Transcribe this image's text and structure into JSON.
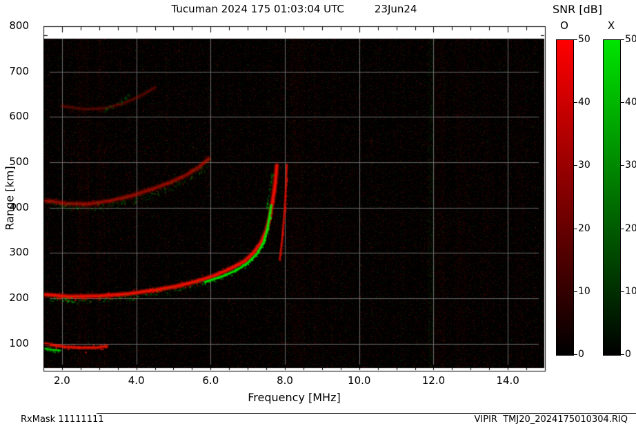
{
  "title": {
    "text": "Tucuman 2024 175 01:03:04 UTC",
    "date": "23Jun24"
  },
  "colorbar": {
    "title": "SNR [dB]",
    "o_label": "O",
    "x_label": "X",
    "ticks": [
      0,
      10,
      20,
      30,
      40,
      50
    ],
    "min": 0,
    "max": 50,
    "o_color": "#ff0000",
    "x_color": "#00e400",
    "base_color": "#000000"
  },
  "axes": {
    "xlabel": "Frequency [MHz]",
    "ylabel": "Range [km]",
    "x_tick_labels": [
      "2.0",
      "4.0",
      "6.0",
      "8.0",
      "10.0",
      "12.0",
      "14.0"
    ],
    "x_tick_values": [
      2,
      4,
      6,
      8,
      10,
      12,
      14
    ],
    "y_tick_labels": [
      "100",
      "200",
      "300",
      "400",
      "500",
      "600",
      "700",
      "800"
    ],
    "y_tick_values": [
      100,
      200,
      300,
      400,
      500,
      600,
      700,
      800
    ]
  },
  "footer": {
    "left": "RxMask 11111111",
    "right": "VIPIR  TMJ20_2024175010304.RIQ"
  },
  "chart_data": {
    "type": "heatmap",
    "title": "Tucuman 2024 175 01:03:04 UTC 23Jun24",
    "description": "VIPIR ionogram: O-mode (red) and X-mode (green) echo SNR versus frequency and virtual range",
    "xlabel": "Frequency [MHz]",
    "ylabel": "Range [km]",
    "xlim": [
      1.5,
      15.0
    ],
    "ylim": [
      40,
      800
    ],
    "snr_dB_range": [
      0,
      50
    ],
    "x_minor_tick_step": 0.5,
    "y_minor_tick_step": 20,
    "grid_color": "#6e6e6e",
    "background": "#000000",
    "traces": [
      {
        "name": "E-layer-echo-O",
        "mode": "O",
        "color": "#e81400",
        "style": "solid",
        "thickness": 6,
        "alpha": 0.9,
        "points": [
          [
            1.55,
            100
          ],
          [
            1.8,
            96
          ],
          [
            2.1,
            93
          ],
          [
            2.5,
            91
          ],
          [
            2.9,
            91
          ],
          [
            3.2,
            94
          ]
        ]
      },
      {
        "name": "E-layer-echo-X",
        "mode": "X",
        "color": "#00d800",
        "style": "solid",
        "thickness": 4,
        "alpha": 0.85,
        "points": [
          [
            1.55,
            89
          ],
          [
            1.75,
            86
          ],
          [
            1.95,
            85
          ]
        ]
      },
      {
        "name": "F-trace-1hop-O",
        "mode": "O",
        "color": "#f01000",
        "style": "solid",
        "thickness": 8,
        "alpha": 0.95,
        "points": [
          [
            1.55,
            208
          ],
          [
            2.2,
            204
          ],
          [
            3.0,
            205
          ],
          [
            3.8,
            210
          ],
          [
            4.5,
            218
          ],
          [
            5.1,
            227
          ],
          [
            5.6,
            237
          ],
          [
            6.1,
            250
          ],
          [
            6.5,
            264
          ],
          [
            6.9,
            281
          ],
          [
            7.15,
            300
          ],
          [
            7.35,
            322
          ],
          [
            7.5,
            350
          ],
          [
            7.6,
            382
          ],
          [
            7.68,
            420
          ],
          [
            7.74,
            455
          ],
          [
            7.78,
            492
          ]
        ]
      },
      {
        "name": "F-trace-1hop-O-2nd-branch",
        "mode": "O",
        "color": "#e01000",
        "style": "solid",
        "thickness": 4,
        "alpha": 0.8,
        "points": [
          [
            7.86,
            285
          ],
          [
            7.93,
            335
          ],
          [
            7.99,
            395
          ],
          [
            8.03,
            450
          ],
          [
            8.05,
            495
          ]
        ]
      },
      {
        "name": "F-trace-1hop-X",
        "mode": "X",
        "color": "#00e800",
        "style": "solid",
        "thickness": 5,
        "alpha": 0.95,
        "points": [
          [
            5.85,
            236
          ],
          [
            6.3,
            248
          ],
          [
            6.7,
            262
          ],
          [
            7.0,
            278
          ],
          [
            7.25,
            298
          ],
          [
            7.42,
            322
          ],
          [
            7.52,
            350
          ],
          [
            7.58,
            378
          ],
          [
            7.63,
            405
          ]
        ]
      },
      {
        "name": "F-trace-1hop-X-lowfreq-speckle",
        "mode": "X",
        "color": "#00c000",
        "style": "dots",
        "thickness": 5,
        "alpha": 0.4,
        "points": [
          [
            1.6,
            200
          ],
          [
            2.2,
            197
          ],
          [
            3.0,
            198
          ],
          [
            3.8,
            203
          ],
          [
            4.5,
            211
          ],
          [
            5.1,
            220
          ],
          [
            5.6,
            230
          ],
          [
            5.85,
            236
          ]
        ]
      },
      {
        "name": "F-trace-1hop-X-patch",
        "mode": "X",
        "color": "#00d800",
        "style": "dots",
        "thickness": 4,
        "alpha": 0.7,
        "points": [
          [
            2.0,
            199
          ],
          [
            2.3,
            197
          ]
        ]
      },
      {
        "name": "F-trace-1hop-X-steep-speckle",
        "mode": "X",
        "color": "#00c800",
        "style": "dots",
        "thickness": 4,
        "alpha": 0.5,
        "points": [
          [
            7.5,
            400
          ],
          [
            7.6,
            450
          ],
          [
            7.65,
            480
          ]
        ]
      },
      {
        "name": "F-trace-2hop-O",
        "mode": "O",
        "color": "#c81000",
        "style": "fuzzy",
        "thickness": 9,
        "alpha": 0.5,
        "points": [
          [
            1.55,
            416
          ],
          [
            2.1,
            409
          ],
          [
            2.7,
            408
          ],
          [
            3.3,
            415
          ],
          [
            3.9,
            427
          ],
          [
            4.4,
            440
          ],
          [
            4.9,
            455
          ],
          [
            5.35,
            472
          ],
          [
            5.7,
            490
          ],
          [
            5.95,
            508
          ]
        ]
      },
      {
        "name": "F-trace-2hop-X-speckle",
        "mode": "X",
        "color": "#00b400",
        "style": "dots",
        "thickness": 6,
        "alpha": 0.35,
        "points": [
          [
            1.55,
            408
          ],
          [
            2.2,
            401
          ],
          [
            2.9,
            401
          ],
          [
            3.5,
            409
          ],
          [
            4.1,
            421
          ],
          [
            4.6,
            434
          ],
          [
            5.0,
            448
          ],
          [
            5.4,
            465
          ],
          [
            5.75,
            483
          ],
          [
            5.95,
            500
          ]
        ]
      },
      {
        "name": "F-trace-3hop-O",
        "mode": "O",
        "color": "#a01000",
        "style": "fuzzy",
        "thickness": 7,
        "alpha": 0.3,
        "points": [
          [
            2.0,
            624
          ],
          [
            2.6,
            617
          ],
          [
            3.2,
            620
          ],
          [
            3.7,
            631
          ],
          [
            4.15,
            648
          ],
          [
            4.5,
            665
          ]
        ]
      },
      {
        "name": "F-trace-3hop-X-speckle",
        "mode": "X",
        "color": "#00a000",
        "style": "dots",
        "thickness": 5,
        "alpha": 0.4,
        "points": [
          [
            3.15,
            618
          ],
          [
            3.55,
            634
          ],
          [
            3.9,
            655
          ]
        ]
      }
    ],
    "clouds": [
      {
        "name": "spreadF-above-2hop",
        "color": "#b40000",
        "x": [
          2.0,
          4.6
        ],
        "y": [
          380,
          545
        ],
        "alpha": 0.28,
        "density": 0.02
      },
      {
        "name": "spreadF-midfreq",
        "color": "#b40000",
        "x": [
          4.6,
          6.6
        ],
        "y": [
          470,
          660
        ],
        "alpha": 0.22,
        "density": 0.016
      },
      {
        "name": "diffuse-upper-left",
        "color": "#960000",
        "x": [
          2.2,
          4.2
        ],
        "y": [
          590,
          700
        ],
        "alpha": 0.16,
        "density": 0.012
      },
      {
        "name": "E-region-diffuse",
        "color": "#b40000",
        "x": [
          1.55,
          3.4
        ],
        "y": [
          60,
          135
        ],
        "alpha": 0.2,
        "density": 0.015
      },
      {
        "name": "green-patch-2hop-top",
        "color": "#00b400",
        "x": [
          5.0,
          6.2
        ],
        "y": [
          470,
          560
        ],
        "alpha": 0.2,
        "density": 0.01
      },
      {
        "name": "steep-diffuse",
        "color": "#c80000",
        "x": [
          7.3,
          8.1
        ],
        "y": [
          300,
          500
        ],
        "alpha": 0.18,
        "density": 0.012
      }
    ],
    "noise_bands": [
      {
        "f": 2.55,
        "width": 0.3,
        "color": "#c80000",
        "alpha": 0.1
      },
      {
        "f": 3.05,
        "width": 0.2,
        "color": "#c80000",
        "alpha": 0.08
      },
      {
        "f": 8.35,
        "width": 0.35,
        "color": "#c80000",
        "alpha": 0.1
      },
      {
        "f": 8.85,
        "width": 0.15,
        "color": "#c80000",
        "alpha": 0.07
      },
      {
        "f": 9.3,
        "width": 0.12,
        "color": "#c80000",
        "alpha": 0.06
      },
      {
        "f": 11.95,
        "width": 0.18,
        "color": "#00c800",
        "alpha": 0.12
      },
      {
        "f": 12.15,
        "width": 0.3,
        "color": "#c80000",
        "alpha": 0.1
      },
      {
        "f": 12.75,
        "width": 0.25,
        "color": "#c80000",
        "alpha": 0.1
      },
      {
        "f": 13.45,
        "width": 0.2,
        "color": "#c80000",
        "alpha": 0.07
      },
      {
        "f": 14.3,
        "width": 0.2,
        "color": "#c80000",
        "alpha": 0.07
      }
    ],
    "base_noise": {
      "red_prob": 0.3,
      "red_alpha_max": 0.22,
      "green_prob": 0.1,
      "green_alpha_max": 0.14,
      "seed": 42
    }
  }
}
